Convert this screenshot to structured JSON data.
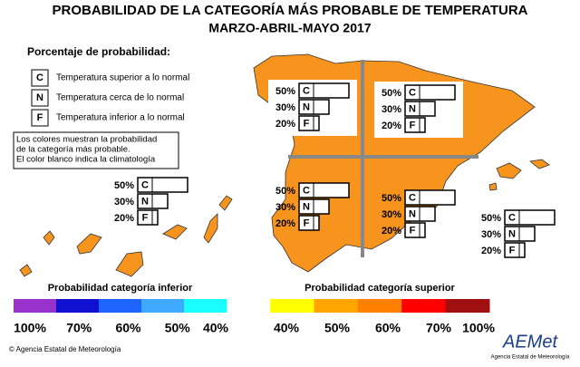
{
  "title": "PROBABILIDAD DE LA CATEGORÍA MÁS PROBABLE DE TEMPERATURA",
  "subtitle": "MARZO-ABRIL-MAYO 2017",
  "legend": {
    "title": "Porcentaje de probabilidad:",
    "items": [
      {
        "code": "C",
        "label": "Temperatura superior a lo normal"
      },
      {
        "code": "N",
        "label": "Temperatura cerca de lo normal"
      },
      {
        "code": "F",
        "label": "Temperatura inferior a lo normal"
      }
    ]
  },
  "note": [
    "Los colores muestran la probabilidad",
    "de la categoría más probable.",
    "El color blanco indica la climatología"
  ],
  "map_color": "#f7941d",
  "regions": [
    {
      "codes": [
        "C",
        "N",
        "F"
      ],
      "values": [
        50,
        30,
        20
      ],
      "value_labels": [
        "50%",
        "30%",
        "20%"
      ]
    },
    {
      "codes": [
        "C",
        "N",
        "F"
      ],
      "values": [
        50,
        30,
        20
      ],
      "value_labels": [
        "50%",
        "30%",
        "20%"
      ]
    },
    {
      "codes": [
        "C",
        "N",
        "F"
      ],
      "values": [
        50,
        30,
        20
      ],
      "value_labels": [
        "50%",
        "30%",
        "20%"
      ]
    },
    {
      "codes": [
        "C",
        "N",
        "F"
      ],
      "values": [
        50,
        30,
        20
      ],
      "value_labels": [
        "50%",
        "30%",
        "20%"
      ]
    },
    {
      "codes": [
        "C",
        "N",
        "F"
      ],
      "values": [
        50,
        30,
        20
      ],
      "value_labels": [
        "50%",
        "30%",
        "20%"
      ]
    },
    {
      "codes": [
        "C",
        "N",
        "F"
      ],
      "values": [
        50,
        30,
        20
      ],
      "value_labels": [
        "50%",
        "30%",
        "20%"
      ]
    }
  ],
  "scales": [
    {
      "title": "Probabilidad categoría inferior",
      "colors": [
        "#9932cc",
        "#1010d0",
        "#1e64ff",
        "#3fa9ff",
        "#19ffff"
      ],
      "ticks": [
        {
          "value": 100,
          "label": "100%"
        },
        {
          "value": 70,
          "label": "70%"
        },
        {
          "value": 60,
          "label": "60%"
        },
        {
          "value": 50,
          "label": "50%"
        },
        {
          "value": 40,
          "label": "40%"
        }
      ]
    },
    {
      "title": "Probabilidad categoría superior",
      "colors": [
        "#ffff00",
        "#ffa500",
        "#ff8000",
        "#ff0000",
        "#a01010"
      ],
      "ticks": [
        {
          "value": 40,
          "label": "40%"
        },
        {
          "value": 50,
          "label": "50%"
        },
        {
          "value": 60,
          "label": "60%"
        },
        {
          "value": 70,
          "label": "70%"
        },
        {
          "value": 100,
          "label": "100%"
        }
      ]
    }
  ],
  "footer": {
    "credit": "© Agencia Estatal de Meteorología",
    "logo": "AEMet",
    "logo_caption": "Agencia Estatal de Meteorología"
  }
}
